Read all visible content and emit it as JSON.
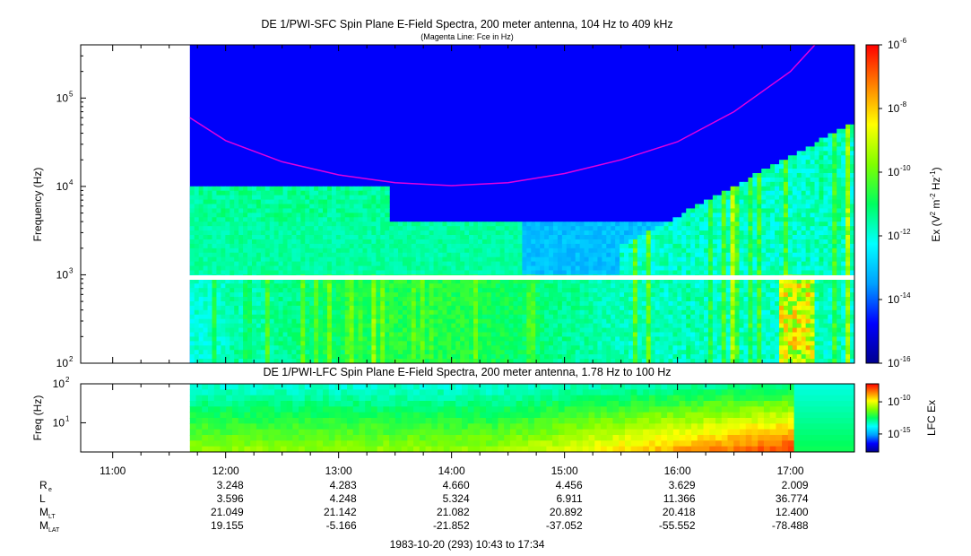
{
  "chart_data": [
    {
      "type": "heatmap",
      "title": "DE 1/PWI-SFC  Spin Plane E-Field Spectra, 200 meter antenna, 104 Hz to 409 kHz",
      "subtitle": "(Magenta Line: Fce in Hz)",
      "ylabel": "Frequency (Hz)",
      "yscale": "log",
      "ylim": [
        100,
        400000
      ],
      "y_ticks": [
        "10",
        "10",
        "10",
        "10"
      ],
      "y_tick_exponents": [
        "2",
        "3",
        "4",
        "5"
      ],
      "y_tick_values": [
        100,
        1000,
        10000,
        100000
      ],
      "data_start_time": "11:41",
      "colorbar": {
        "label_base": "Ex (V",
        "label_sup1": "2",
        "label_mid": " m",
        "label_sup2": "-2",
        "label_mid2": " Hz",
        "label_sup3": "-1",
        "label_end": ")",
        "scale": "log",
        "range": [
          1e-16,
          1e-06
        ],
        "ticks": [
          "10",
          "10",
          "10",
          "10",
          "10",
          "10"
        ],
        "tick_exponents": [
          "-6",
          "-8",
          "-10",
          "-12",
          "-14",
          "-16"
        ],
        "tick_values": [
          1e-06,
          1e-08,
          1e-10,
          1e-12,
          1e-14,
          1e-16
        ],
        "colormap": [
          "#00008f",
          "#0000ff",
          "#00a0ff",
          "#00ffff",
          "#00ff60",
          "#80ff00",
          "#ffff00",
          "#ff8000",
          "#ff0000"
        ]
      },
      "overlay_line": {
        "name": "Fce",
        "color": "#e000e0",
        "times": [
          "11:41",
          "12:00",
          "12:30",
          "13:00",
          "13:30",
          "14:00",
          "14:30",
          "15:00",
          "15:30",
          "16:00",
          "16:30",
          "17:00",
          "17:13"
        ],
        "values": [
          60000,
          33000,
          19000,
          13500,
          11000,
          10200,
          11000,
          14000,
          20000,
          32000,
          70000,
          200000,
          400000
        ]
      }
    },
    {
      "type": "heatmap",
      "title": "DE 1/PWI-LFC  Spin Plane E-Field Spectra, 200 meter antenna, 1.78 Hz to 100 Hz",
      "ylabel": "Freq (Hz)",
      "yscale": "log",
      "ylim": [
        1.78,
        100
      ],
      "y_ticks": [
        "10",
        "10"
      ],
      "y_tick_exponents": [
        "2",
        "1"
      ],
      "y_tick_values": [
        100,
        10
      ],
      "colorbar": {
        "label": "LFC Ex",
        "scale": "log",
        "ticks": [
          "10",
          "10"
        ],
        "tick_exponents": [
          "-10",
          "-15"
        ],
        "tick_values": [
          1e-10,
          1e-15
        ]
      }
    }
  ],
  "time_axis": {
    "labels": [
      "11:00",
      "12:00",
      "13:00",
      "14:00",
      "15:00",
      "16:00",
      "17:00"
    ],
    "start": "10:43",
    "end": "17:34"
  },
  "ephemeris": {
    "rows": [
      {
        "label": "R",
        "sub": "e",
        "values": [
          "3.248",
          "4.283",
          "4.660",
          "4.456",
          "3.629",
          "2.009"
        ]
      },
      {
        "label": "L",
        "sub": "",
        "values": [
          "3.596",
          "4.248",
          "5.324",
          "6.911",
          "11.366",
          "36.774"
        ]
      },
      {
        "label": "M",
        "sub": "LT",
        "values": [
          "21.049",
          "21.142",
          "21.082",
          "20.892",
          "20.418",
          "12.400"
        ]
      },
      {
        "label": "M",
        "sub": "LAT",
        "values": [
          "19.155",
          "-5.166",
          "-21.852",
          "-37.052",
          "-55.552",
          "-78.488"
        ]
      }
    ]
  },
  "footer": "1983-10-20 (293) 10:43 to 17:34"
}
